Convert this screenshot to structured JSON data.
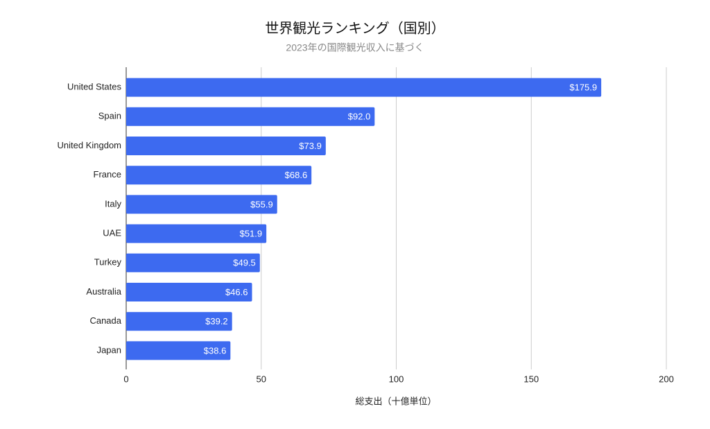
{
  "chart_data": {
    "type": "bar",
    "orientation": "horizontal",
    "title": "世界観光ランキング（国別）",
    "subtitle": "2023年の国際観光収入に基づく",
    "x_label": "総支出（十億単位）",
    "categories": [
      "United States",
      "Spain",
      "United Kingdom",
      "France",
      "Italy",
      "UAE",
      "Turkey",
      "Australia",
      "Canada",
      "Japan"
    ],
    "values": [
      175.9,
      92.0,
      73.9,
      68.6,
      55.9,
      51.9,
      49.5,
      46.6,
      39.2,
      38.6
    ],
    "value_labels": [
      "$175.9",
      "$92.0",
      "$73.9",
      "$68.6",
      "$55.9",
      "$51.9",
      "$49.5",
      "$46.6",
      "$39.2",
      "$38.6"
    ],
    "color": "#3d6af0",
    "xlim": [
      0,
      200
    ],
    "xticks": [
      0,
      50,
      100,
      150,
      200
    ],
    "grid": true
  }
}
